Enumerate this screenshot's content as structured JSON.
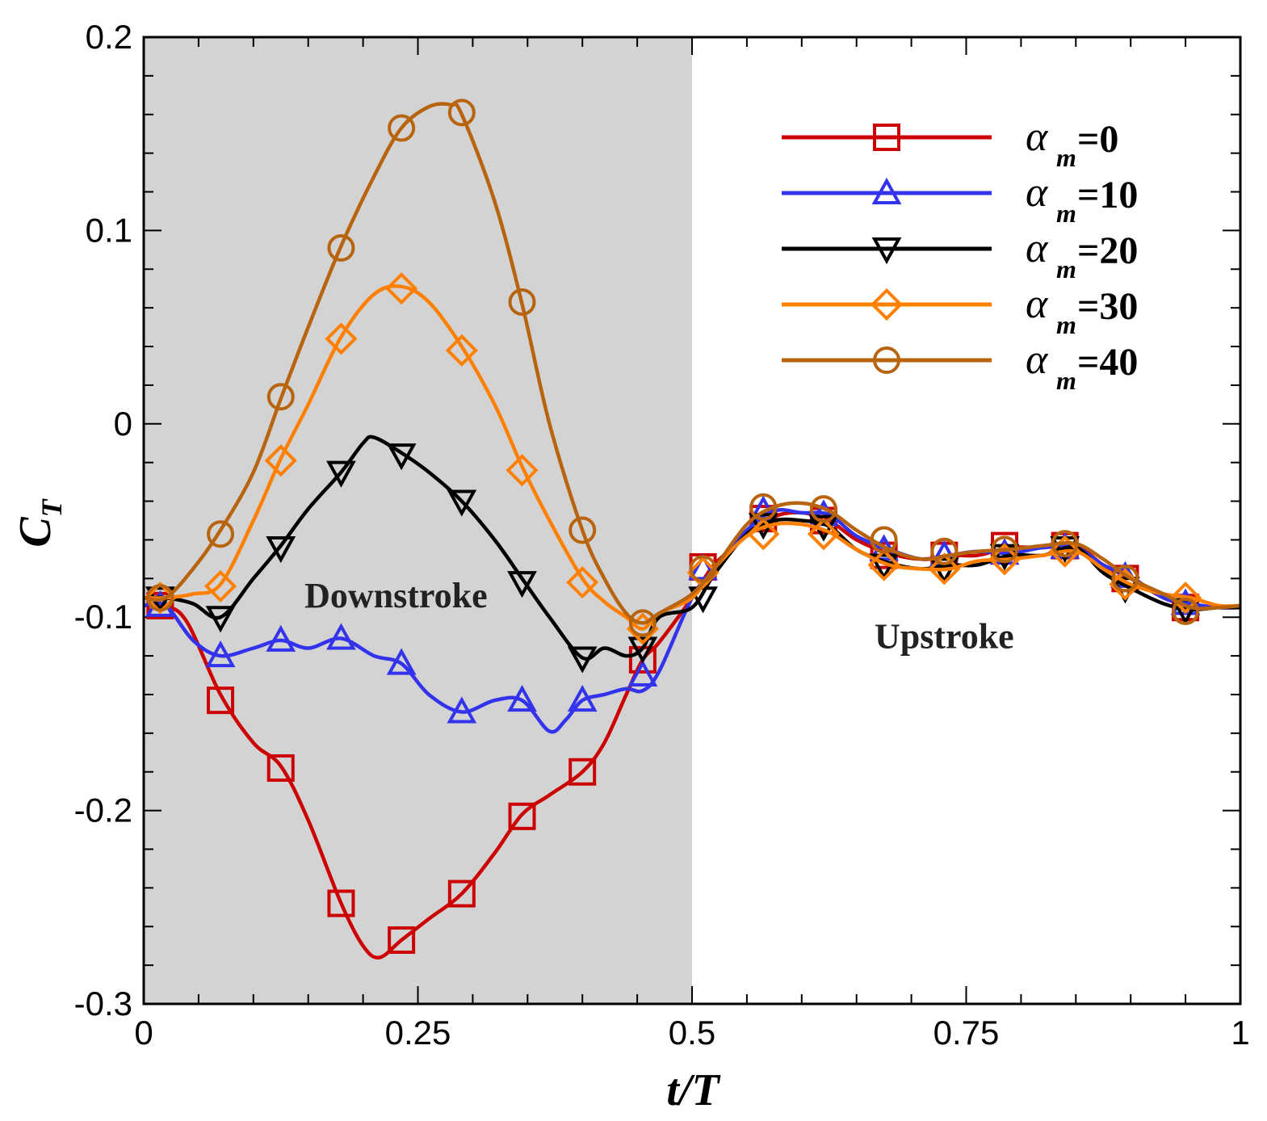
{
  "chart_data": {
    "type": "line",
    "title": "",
    "xlabel": "t/T",
    "ylabel": "C_T",
    "ylabel_main": "C",
    "ylabel_sub": "T",
    "xlim": [
      0,
      1
    ],
    "ylim": [
      -0.3,
      0.2
    ],
    "x_ticks": [
      0,
      0.25,
      0.5,
      0.75,
      1
    ],
    "x_tick_labels": [
      "0",
      "0.25",
      "0.5",
      "0.75",
      "1"
    ],
    "y_ticks": [
      -0.3,
      -0.2,
      -0.1,
      0,
      0.1,
      0.2
    ],
    "y_tick_labels": [
      "-0.3",
      "-0.2",
      "-0.1",
      "0",
      "0.1",
      "0.2"
    ],
    "shaded_region": {
      "x_range": [
        0,
        0.5
      ],
      "color": "#d3d3d3"
    },
    "annotations": [
      {
        "text": "Downstroke",
        "x": 0.23,
        "y": -0.095
      },
      {
        "text": "Upstroke",
        "x": 0.73,
        "y": -0.116
      }
    ],
    "legend_position": "top-right",
    "legend_symbol": "α",
    "legend_subscript": "m",
    "series": [
      {
        "name": "α_m=0",
        "value_label": "=0",
        "color": "#cc0000",
        "marker": "square",
        "x": [
          0,
          0.02,
          0.04,
          0.07,
          0.1,
          0.125,
          0.15,
          0.18,
          0.2,
          0.215,
          0.235,
          0.26,
          0.29,
          0.32,
          0.345,
          0.37,
          0.4,
          0.42,
          0.44,
          0.455,
          0.47,
          0.5,
          0.52,
          0.55,
          0.575,
          0.6,
          0.625,
          0.65,
          0.68,
          0.71,
          0.735,
          0.76,
          0.79,
          0.82,
          0.85,
          0.875,
          0.9,
          0.93,
          0.955,
          0.98,
          1.0
        ],
        "y": [
          -0.094,
          -0.094,
          -0.103,
          -0.14,
          -0.165,
          -0.177,
          -0.205,
          -0.248,
          -0.27,
          -0.276,
          -0.267,
          -0.256,
          -0.243,
          -0.222,
          -0.202,
          -0.192,
          -0.18,
          -0.165,
          -0.14,
          -0.122,
          -0.113,
          -0.09,
          -0.073,
          -0.058,
          -0.048,
          -0.046,
          -0.05,
          -0.06,
          -0.067,
          -0.07,
          -0.068,
          -0.068,
          -0.064,
          -0.064,
          -0.063,
          -0.073,
          -0.08,
          -0.09,
          -0.094,
          -0.095,
          -0.095
        ],
        "marker_x": [
          0.015,
          0.07,
          0.125,
          0.18,
          0.235,
          0.29,
          0.345,
          0.4,
          0.455,
          0.51,
          0.565,
          0.62,
          0.675,
          0.73,
          0.785,
          0.84,
          0.895,
          0.95
        ],
        "marker_y": [
          -0.094,
          -0.143,
          -0.178,
          -0.248,
          -0.267,
          -0.243,
          -0.203,
          -0.18,
          -0.122,
          -0.074,
          -0.049,
          -0.05,
          -0.068,
          -0.068,
          -0.063,
          -0.063,
          -0.08,
          -0.095
        ]
      },
      {
        "name": "α_m=10",
        "value_label": "=10",
        "color": "#3333ee",
        "marker": "triangle-up",
        "x": [
          0,
          0.02,
          0.045,
          0.07,
          0.1,
          0.125,
          0.15,
          0.18,
          0.21,
          0.235,
          0.26,
          0.29,
          0.32,
          0.345,
          0.37,
          0.385,
          0.4,
          0.42,
          0.44,
          0.455,
          0.47,
          0.5,
          0.52,
          0.55,
          0.575,
          0.6,
          0.625,
          0.65,
          0.68,
          0.71,
          0.735,
          0.76,
          0.79,
          0.82,
          0.85,
          0.875,
          0.9,
          0.93,
          0.955,
          0.98,
          1.0
        ],
        "y": [
          -0.094,
          -0.094,
          -0.112,
          -0.12,
          -0.116,
          -0.112,
          -0.116,
          -0.111,
          -0.12,
          -0.124,
          -0.14,
          -0.149,
          -0.143,
          -0.143,
          -0.159,
          -0.153,
          -0.143,
          -0.14,
          -0.137,
          -0.138,
          -0.128,
          -0.09,
          -0.075,
          -0.055,
          -0.045,
          -0.046,
          -0.047,
          -0.058,
          -0.065,
          -0.07,
          -0.068,
          -0.066,
          -0.067,
          -0.064,
          -0.064,
          -0.073,
          -0.079,
          -0.09,
          -0.093,
          -0.095,
          -0.095
        ],
        "marker_x": [
          0.015,
          0.07,
          0.125,
          0.18,
          0.235,
          0.29,
          0.345,
          0.4,
          0.455,
          0.51,
          0.565,
          0.62,
          0.675,
          0.73,
          0.785,
          0.84,
          0.895,
          0.95
        ],
        "marker_y": [
          -0.094,
          -0.12,
          -0.112,
          -0.111,
          -0.124,
          -0.149,
          -0.143,
          -0.143,
          -0.13,
          -0.075,
          -0.045,
          -0.047,
          -0.065,
          -0.068,
          -0.067,
          -0.064,
          -0.079,
          -0.093
        ]
      },
      {
        "name": "α_m=20",
        "value_label": "=20",
        "color": "#000000",
        "marker": "triangle-down",
        "x": [
          0,
          0.02,
          0.045,
          0.07,
          0.1,
          0.125,
          0.15,
          0.18,
          0.2,
          0.21,
          0.235,
          0.26,
          0.29,
          0.32,
          0.345,
          0.37,
          0.4,
          0.42,
          0.44,
          0.455,
          0.47,
          0.5,
          0.52,
          0.55,
          0.575,
          0.6,
          0.625,
          0.65,
          0.68,
          0.71,
          0.735,
          0.76,
          0.79,
          0.82,
          0.85,
          0.875,
          0.9,
          0.93,
          0.955,
          0.98,
          1.0
        ],
        "y": [
          -0.09,
          -0.09,
          -0.093,
          -0.1,
          -0.08,
          -0.063,
          -0.044,
          -0.025,
          -0.01,
          -0.007,
          -0.015,
          -0.025,
          -0.04,
          -0.06,
          -0.08,
          -0.1,
          -0.121,
          -0.116,
          -0.12,
          -0.116,
          -0.1,
          -0.095,
          -0.078,
          -0.057,
          -0.05,
          -0.05,
          -0.053,
          -0.065,
          -0.072,
          -0.075,
          -0.073,
          -0.073,
          -0.068,
          -0.068,
          -0.064,
          -0.077,
          -0.085,
          -0.093,
          -0.096,
          -0.095,
          -0.095
        ],
        "marker_x": [
          0.015,
          0.07,
          0.125,
          0.18,
          0.235,
          0.29,
          0.345,
          0.4,
          0.455,
          0.51,
          0.565,
          0.62,
          0.675,
          0.73,
          0.785,
          0.84,
          0.895,
          0.95
        ],
        "marker_y": [
          -0.09,
          -0.1,
          -0.064,
          -0.025,
          -0.016,
          -0.04,
          -0.082,
          -0.121,
          -0.116,
          -0.09,
          -0.052,
          -0.053,
          -0.073,
          -0.075,
          -0.068,
          -0.064,
          -0.085,
          -0.096
        ]
      },
      {
        "name": "α_m=30",
        "value_label": "=30",
        "color": "#ff8000",
        "marker": "diamond",
        "x": [
          0,
          0.02,
          0.045,
          0.07,
          0.1,
          0.125,
          0.15,
          0.18,
          0.21,
          0.235,
          0.26,
          0.29,
          0.32,
          0.345,
          0.37,
          0.4,
          0.42,
          0.44,
          0.455,
          0.47,
          0.5,
          0.52,
          0.55,
          0.575,
          0.6,
          0.625,
          0.65,
          0.68,
          0.71,
          0.735,
          0.76,
          0.79,
          0.82,
          0.85,
          0.875,
          0.9,
          0.93,
          0.955,
          0.98,
          1.0
        ],
        "y": [
          -0.09,
          -0.09,
          -0.088,
          -0.083,
          -0.05,
          -0.018,
          0.01,
          0.045,
          0.067,
          0.071,
          0.063,
          0.04,
          0.01,
          -0.022,
          -0.05,
          -0.08,
          -0.092,
          -0.1,
          -0.106,
          -0.098,
          -0.09,
          -0.075,
          -0.058,
          -0.052,
          -0.052,
          -0.056,
          -0.065,
          -0.073,
          -0.075,
          -0.075,
          -0.071,
          -0.07,
          -0.068,
          -0.066,
          -0.075,
          -0.083,
          -0.088,
          -0.09,
          -0.094,
          -0.094
        ],
        "marker_x": [
          0.015,
          0.07,
          0.125,
          0.18,
          0.235,
          0.29,
          0.345,
          0.4,
          0.455,
          0.51,
          0.565,
          0.62,
          0.675,
          0.73,
          0.785,
          0.84,
          0.895,
          0.95
        ],
        "marker_y": [
          -0.09,
          -0.084,
          -0.019,
          0.044,
          0.07,
          0.038,
          -0.024,
          -0.082,
          -0.106,
          -0.077,
          -0.057,
          -0.057,
          -0.073,
          -0.075,
          -0.07,
          -0.066,
          -0.083,
          -0.09
        ]
      },
      {
        "name": "α_m=40",
        "value_label": "=40",
        "color": "#b8640f",
        "marker": "circle",
        "x": [
          0,
          0.02,
          0.045,
          0.07,
          0.1,
          0.125,
          0.15,
          0.18,
          0.21,
          0.235,
          0.26,
          0.28,
          0.29,
          0.32,
          0.345,
          0.37,
          0.4,
          0.42,
          0.44,
          0.455,
          0.47,
          0.5,
          0.52,
          0.55,
          0.575,
          0.6,
          0.625,
          0.65,
          0.68,
          0.71,
          0.735,
          0.76,
          0.79,
          0.82,
          0.85,
          0.875,
          0.9,
          0.93,
          0.955,
          0.98,
          1.0
        ],
        "y": [
          -0.09,
          -0.09,
          -0.075,
          -0.055,
          -0.025,
          0.013,
          0.05,
          0.092,
          0.128,
          0.153,
          0.164,
          0.165,
          0.16,
          0.115,
          0.062,
          0.0,
          -0.055,
          -0.08,
          -0.098,
          -0.103,
          -0.098,
          -0.088,
          -0.075,
          -0.052,
          -0.043,
          -0.041,
          -0.045,
          -0.055,
          -0.065,
          -0.07,
          -0.068,
          -0.066,
          -0.065,
          -0.063,
          -0.062,
          -0.07,
          -0.08,
          -0.088,
          -0.095,
          -0.095,
          -0.094
        ],
        "marker_x": [
          0.015,
          0.07,
          0.125,
          0.18,
          0.235,
          0.29,
          0.345,
          0.4,
          0.455,
          0.51,
          0.565,
          0.62,
          0.675,
          0.73,
          0.785,
          0.84,
          0.895,
          0.95
        ],
        "marker_y": [
          -0.09,
          -0.057,
          0.014,
          0.091,
          0.153,
          0.161,
          0.063,
          -0.055,
          -0.103,
          -0.075,
          -0.043,
          -0.044,
          -0.06,
          -0.066,
          -0.065,
          -0.062,
          -0.08,
          -0.097
        ]
      }
    ]
  }
}
